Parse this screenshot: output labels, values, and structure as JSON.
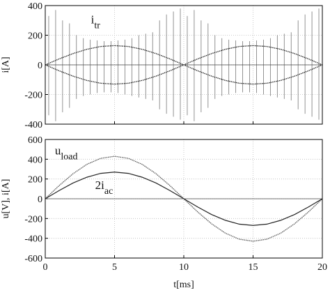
{
  "chart_data": [
    {
      "type": "line",
      "ylabel": "i[A]",
      "xlim": [
        0,
        20
      ],
      "ylim": [
        -400,
        400
      ],
      "xticks": [
        0,
        5,
        10,
        15,
        20
      ],
      "yticks": [
        -400,
        -200,
        0,
        200,
        400
      ],
      "grid": true,
      "xtick_labels": false,
      "annotations": [
        {
          "text": "i",
          "sub": "tr",
          "x": 3.3,
          "y": 280
        }
      ],
      "series": [
        {
          "style": "spikes",
          "color": "#777777",
          "x": [
            0.25,
            0.75,
            1.25,
            1.75,
            2.25,
            2.75,
            3.25,
            3.75,
            4.25,
            4.75,
            5.25,
            5.75,
            6.25,
            6.75,
            7.25,
            7.75,
            8.25,
            8.75,
            9.25,
            9.75,
            10.25,
            10.75,
            11.25,
            11.75,
            12.25,
            12.75,
            13.25,
            13.75,
            14.25,
            14.75,
            15.25,
            15.75,
            16.25,
            16.75,
            17.25,
            17.75,
            18.25,
            18.75,
            19.25,
            19.75
          ],
          "values": [
            330,
            370,
            300,
            280,
            200,
            180,
            170,
            165,
            160,
            160,
            165,
            170,
            180,
            200,
            210,
            220,
            300,
            340,
            360,
            380,
            330,
            370,
            300,
            280,
            200,
            180,
            170,
            165,
            160,
            160,
            165,
            170,
            180,
            200,
            210,
            220,
            300,
            340,
            360,
            380
          ]
        },
        {
          "style": "spikes",
          "color": "#777777",
          "x": [
            0.25,
            0.75,
            1.25,
            1.75,
            2.25,
            2.75,
            3.25,
            3.75,
            4.25,
            4.75,
            5.25,
            5.75,
            6.25,
            6.75,
            7.25,
            7.75,
            8.25,
            8.75,
            9.25,
            9.75,
            10.25,
            10.75,
            11.25,
            11.75,
            12.25,
            12.75,
            13.25,
            13.75,
            14.25,
            14.75,
            15.25,
            15.75,
            16.25,
            16.75,
            17.25,
            17.75,
            18.25,
            18.75,
            19.25,
            19.75
          ],
          "values": [
            -340,
            -380,
            -320,
            -290,
            -230,
            -210,
            -200,
            -190,
            -185,
            -185,
            -190,
            -200,
            -210,
            -220,
            -230,
            -240,
            -300,
            -330,
            -350,
            -370,
            -340,
            -380,
            -320,
            -290,
            -230,
            -210,
            -200,
            -190,
            -185,
            -185,
            -190,
            -200,
            -210,
            -220,
            -230,
            -240,
            -300,
            -330,
            -350,
            -370
          ]
        },
        {
          "style": "dotted",
          "color": "#222222",
          "x": [
            0,
            1,
            2,
            3,
            4,
            5,
            6,
            7,
            8,
            9,
            10,
            11,
            12,
            13,
            14,
            15,
            16,
            17,
            18,
            19,
            20
          ],
          "values": [
            0,
            40,
            76,
            105,
            124,
            130,
            124,
            105,
            76,
            40,
            0,
            40,
            76,
            105,
            124,
            130,
            124,
            105,
            76,
            40,
            0
          ]
        },
        {
          "style": "dotted",
          "color": "#222222",
          "x": [
            0,
            1,
            2,
            3,
            4,
            5,
            6,
            7,
            8,
            9,
            10,
            11,
            12,
            13,
            14,
            15,
            16,
            17,
            18,
            19,
            20
          ],
          "values": [
            0,
            -40,
            -76,
            -105,
            -124,
            -130,
            -124,
            -105,
            -76,
            -40,
            0,
            -40,
            -76,
            -105,
            -124,
            -130,
            -124,
            -105,
            -76,
            -40,
            0
          ]
        }
      ]
    },
    {
      "type": "line",
      "xlabel": "t[ms]",
      "ylabel": "u[V], i[A]",
      "xlim": [
        0,
        20
      ],
      "ylim": [
        -600,
        600
      ],
      "xticks": [
        0,
        5,
        10,
        15,
        20
      ],
      "yticks": [
        -600,
        -400,
        -200,
        0,
        200,
        400,
        600
      ],
      "grid": true,
      "xtick_labels": true,
      "annotations": [
        {
          "text": "u",
          "sub": "load",
          "x": 0.7,
          "y": 450
        },
        {
          "text": "2i",
          "sub": "ac",
          "x": 3.6,
          "y": 100
        }
      ],
      "series": [
        {
          "style": "dotted",
          "color": "#555555",
          "x": [
            0,
            1,
            2,
            3,
            4,
            5,
            6,
            7,
            8,
            9,
            10,
            11,
            12,
            13,
            14,
            15,
            16,
            17,
            18,
            19,
            20
          ],
          "values": [
            0,
            133,
            253,
            348,
            409,
            430,
            409,
            348,
            253,
            133,
            0,
            -133,
            -253,
            -348,
            -409,
            -430,
            -409,
            -348,
            -253,
            -133,
            0
          ]
        },
        {
          "style": "solid",
          "color": "#222222",
          "x": [
            0,
            1,
            2,
            3,
            4,
            5,
            6,
            7,
            8,
            9,
            10,
            11,
            12,
            13,
            14,
            15,
            16,
            17,
            18,
            19,
            20
          ],
          "values": [
            0,
            83,
            159,
            218,
            257,
            270,
            257,
            218,
            159,
            83,
            0,
            -83,
            -159,
            -218,
            -257,
            -270,
            -257,
            -218,
            -159,
            -83,
            0
          ]
        }
      ]
    }
  ]
}
